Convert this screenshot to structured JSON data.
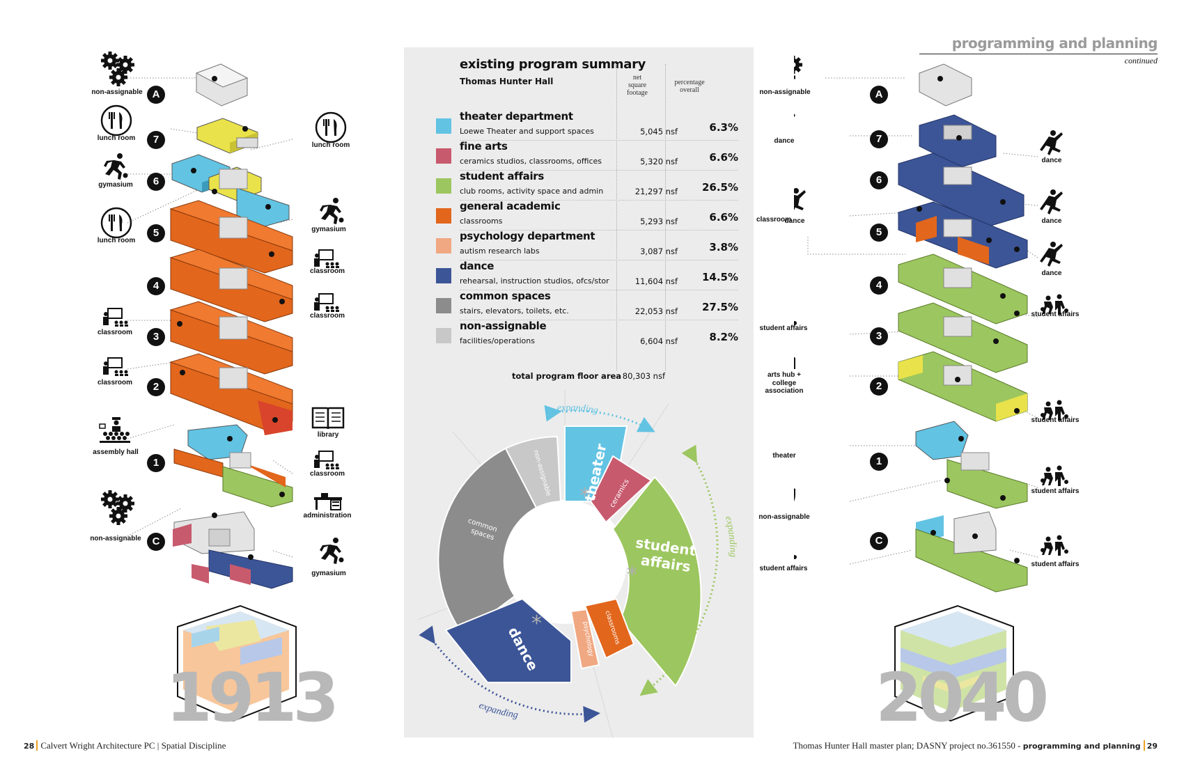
{
  "header": {
    "title": "programming and planning",
    "continued": "continued"
  },
  "left_diagram": {
    "floors": [
      "A",
      "7",
      "6",
      "5",
      "4",
      "3",
      "2",
      "1",
      "C"
    ],
    "labels": {
      "non_assignable_top": "non-assignable",
      "lunch_room_l7": "lunch room",
      "lunch_room_r7": "lunch room",
      "gymasium_l6": "gymasium",
      "lunch_room_l5": "lunch room",
      "gymasium_r5": "gymasium",
      "classroom_r5": "classroom",
      "classroom_r4": "classroom",
      "classroom_l3": "classroom",
      "classroom_l2": "classroom",
      "library": "library",
      "assembly_hall": "assembly hall",
      "classroom_r1": "classroom",
      "administration": "administration",
      "non_assignable_c": "non-assignable",
      "gymasium_c": "gymasium"
    },
    "year": "1913"
  },
  "right_diagram": {
    "floors": [
      "A",
      "7",
      "6",
      "5",
      "4",
      "3",
      "2",
      "1",
      "C"
    ],
    "labels": {
      "non_assignable_top": "non-assignable",
      "dance_l7": "dance",
      "dance_r7": "dance",
      "classroom_l5": "classroom",
      "dance_l5": "dance",
      "dance_r6": "dance",
      "dance_r5": "dance",
      "student_affairs_r4": "student affairs",
      "student_affairs_l3": "student affairs",
      "arts_hub": "arts hub +",
      "college_assoc": "college association",
      "student_affairs_r2": "student affairs",
      "theater": "theater",
      "student_affairs_r1": "student affairs",
      "non_assignable_1": "non-assignable",
      "student_affairs_lc": "student affairs",
      "student_affairs_rc": "student affairs"
    },
    "year": "2040"
  },
  "summary": {
    "title": "existing program summary",
    "subtitle": "Thomas Hunter Hall",
    "col_nsf": [
      "net",
      "square",
      "footage"
    ],
    "col_pct": [
      "percentage",
      "overall"
    ],
    "rows": [
      {
        "name": "theater department",
        "desc": "Loewe Theater and support spaces",
        "nsf": "5,045 nsf",
        "pct": "6.3%"
      },
      {
        "name": "fine arts",
        "desc": "ceramics studios, classrooms, offices",
        "nsf": "5,320 nsf",
        "pct": "6.6%"
      },
      {
        "name": "student affairs",
        "desc": "club rooms, activity space and admin",
        "nsf": "21,297 nsf",
        "pct": "26.5%"
      },
      {
        "name": "general academic",
        "desc": "classrooms",
        "nsf": "5,293 nsf",
        "pct": "6.6%"
      },
      {
        "name": "psychology department",
        "desc": "autism research labs",
        "nsf": "3,087 nsf",
        "pct": "3.8%"
      },
      {
        "name": "dance",
        "desc": "rehearsal, instruction studios, ofcs/stor",
        "nsf": "11,604 nsf",
        "pct": "14.5%"
      },
      {
        "name": "common spaces",
        "desc": "stairs, elevators, toilets, etc.",
        "nsf": "22,053 nsf",
        "pct": "27.5%"
      },
      {
        "name": "non-assignable",
        "desc": "facilities/operations",
        "nsf": "6,604 nsf",
        "pct": "8.2%"
      }
    ],
    "total_label": "total program floor area",
    "total_value": "80,303 nsf"
  },
  "wheel": {
    "segment_labels": {
      "theater": "theater",
      "ceramics": "ceramics",
      "student": "student",
      "affairs": "affairs",
      "classrooms": "classrooms",
      "psychology": "psychology",
      "dance": "dance",
      "common": "common",
      "spaces": "spaces",
      "nonassignable": "non-assignable"
    },
    "expanding": "expanding",
    "asterisk": "*"
  },
  "colors": {
    "theater": "#62c3e3",
    "fine_arts": "#c85a6e",
    "student_affairs": "#9cc65f",
    "general_academic": "#e2661c",
    "psychology": "#f0a882",
    "dance": "#3c5597",
    "common": "#8c8c8c",
    "nonassign": "#c8c8c8"
  },
  "footer": {
    "left_page": "28",
    "left_text": "Calvert Wright Architecture PC | Spatial Discipline",
    "right_text": "Thomas Hunter Hall master plan; DASNY project no.361550 - ",
    "right_bold": "programming and planning",
    "right_page": "29"
  }
}
